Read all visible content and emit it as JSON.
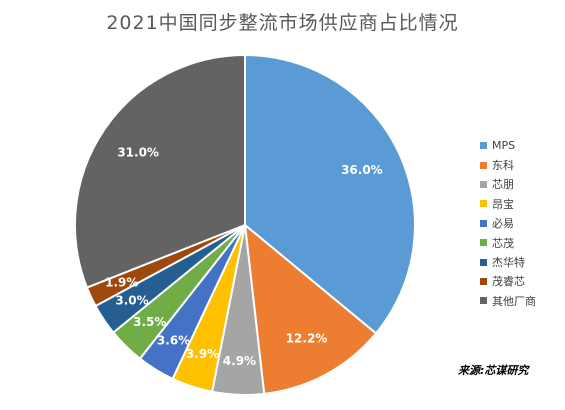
{
  "chart_data": {
    "type": "pie",
    "title": "2021中国同步整流市场供应商占比情况",
    "labels": [
      "MPS",
      "东科",
      "芯朋",
      "昂宝",
      "必易",
      "芯茂",
      "杰华特",
      "茂睿芯",
      "其他厂商"
    ],
    "values": [
      36.0,
      12.2,
      4.9,
      3.9,
      3.6,
      3.5,
      3.0,
      1.9,
      31.0
    ],
    "value_labels": [
      "36.0%",
      "12.2%",
      "4.9%",
      "3.9%",
      "3.6%",
      "3.5%",
      "3.0%",
      "1.9%",
      "31.0%"
    ],
    "colors": [
      "#5B9BD5",
      "#ED7D31",
      "#A5A5A5",
      "#FFC000",
      "#4472C4",
      "#70AD47",
      "#255E91",
      "#9E480E",
      "#636363"
    ],
    "legend_position": "right",
    "start_angle": "12 o'clock",
    "direction": "clockwise"
  },
  "source_note": "来源:芯谋研究"
}
